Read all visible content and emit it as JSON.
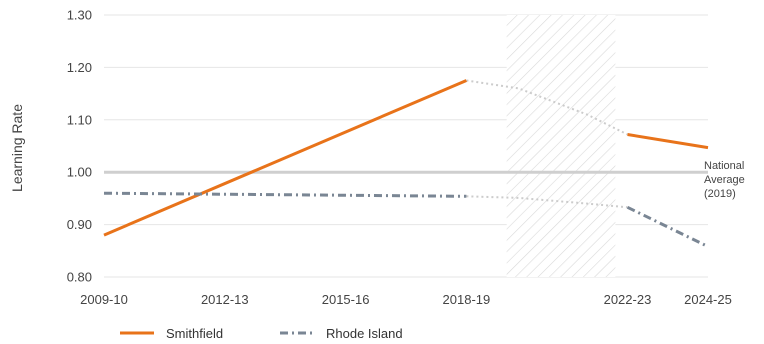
{
  "chart_data": {
    "type": "line",
    "ylabel": "Learning Rate",
    "ylim": [
      0.8,
      1.3
    ],
    "yticks": [
      "0.80",
      "0.90",
      "1.00",
      "1.10",
      "1.20",
      "1.30"
    ],
    "xticks": [
      "2009-10",
      "2012-13",
      "2015-16",
      "2018-19",
      "2022-23",
      "2024-25"
    ],
    "reference_line": {
      "value": 1.0,
      "label_lines": [
        "National",
        "Average",
        "(2019)"
      ]
    },
    "shaded_period": {
      "from": 2019.0,
      "to": 2021.7,
      "pattern": "diagonal-hatch"
    },
    "grid": true,
    "legend_position": "bottom-left",
    "series": [
      {
        "name": "Smithfield",
        "color": "#E8731A",
        "style": "solid",
        "segments": [
          {
            "x": [
              2009,
              2018
            ],
            "y": [
              0.88,
              1.175
            ]
          },
          {
            "x": [
              2022,
              2024
            ],
            "y": [
              1.072,
              1.047
            ]
          }
        ],
        "gap": {
          "x": [
            2018,
            2019.3,
            2021,
            2022
          ],
          "y": [
            1.175,
            1.16,
            1.11,
            1.072
          ]
        }
      },
      {
        "name": "Rhode Island",
        "color": "#7A8694",
        "style": "dashed",
        "segments": [
          {
            "x": [
              2009,
              2018
            ],
            "y": [
              0.96,
              0.954
            ]
          },
          {
            "x": [
              2022,
              2024
            ],
            "y": [
              0.933,
              0.858
            ]
          }
        ],
        "gap": {
          "x": [
            2018,
            2019.3,
            2021,
            2022
          ],
          "y": [
            0.954,
            0.951,
            0.94,
            0.933
          ]
        }
      }
    ]
  }
}
